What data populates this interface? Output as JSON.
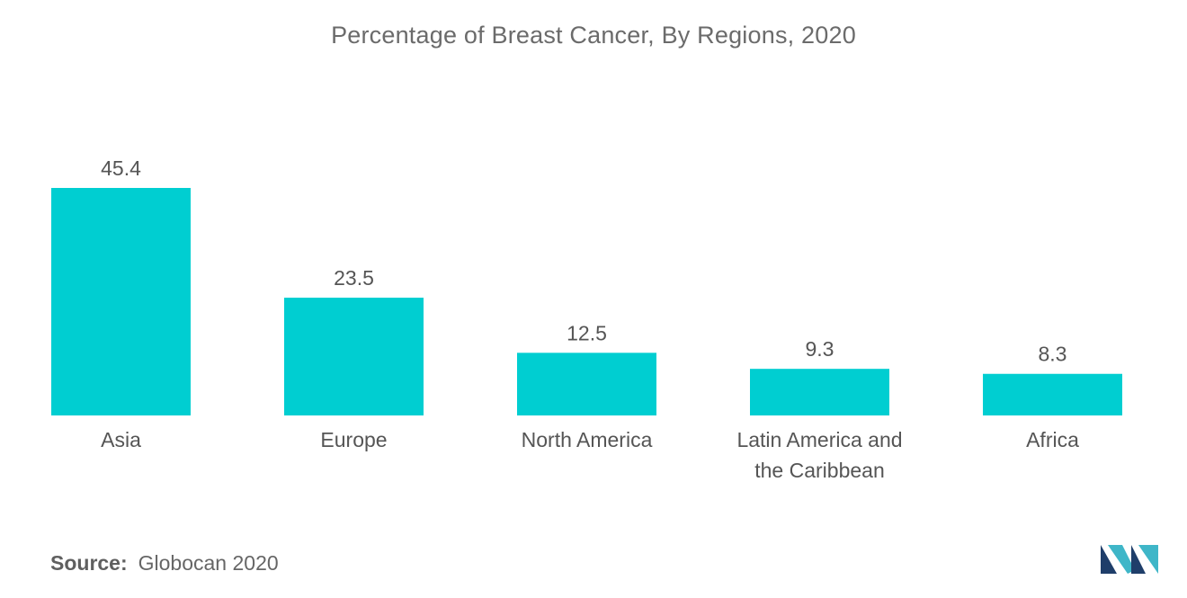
{
  "chart_data": {
    "type": "bar",
    "title": "Percentage of Breast Cancer, By Regions, 2020",
    "categories": [
      [
        "Asia"
      ],
      [
        "Europe"
      ],
      [
        "North America"
      ],
      [
        "Latin America and",
        "the Caribbean"
      ],
      [
        "Africa"
      ]
    ],
    "values": [
      45.4,
      23.5,
      12.5,
      9.3,
      8.3
    ],
    "value_labels": [
      "45.4",
      "23.5",
      "12.5",
      "9.3",
      "8.3"
    ],
    "xlabel": "",
    "ylabel": "",
    "ylim": [
      0,
      45.4
    ],
    "grid": false,
    "legend": "none",
    "bar_color": "#00ced1"
  },
  "source": {
    "label": "Source:",
    "text": "Globocan 2020"
  },
  "logo": {
    "icon": "mordor-logo-icon",
    "colors": [
      "#1f3e6a",
      "#3fb6c8"
    ]
  }
}
